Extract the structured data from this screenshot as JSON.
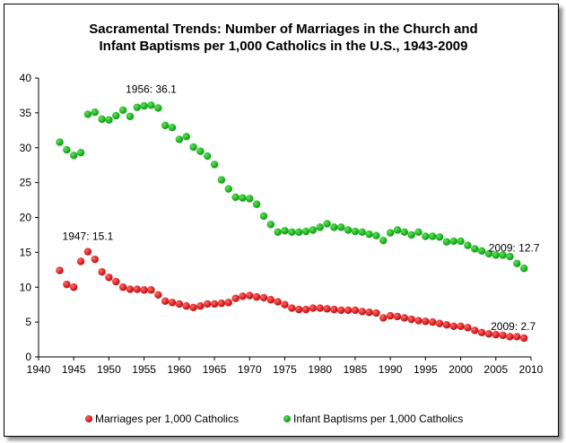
{
  "chart_data": {
    "type": "scatter",
    "title": "Sacramental Trends: Number of Marriages in the Church and",
    "subtitle": "Infant Baptisms per 1,000 Catholics in the U.S., 1943-2009",
    "xlim": [
      1940,
      2010
    ],
    "ylim": [
      0,
      40
    ],
    "x_ticks": [
      1940,
      1945,
      1950,
      1955,
      1960,
      1965,
      1970,
      1975,
      1980,
      1985,
      1990,
      1995,
      2000,
      2005,
      2010
    ],
    "y_ticks": [
      0,
      5,
      10,
      15,
      20,
      25,
      30,
      35,
      40
    ],
    "grid": false,
    "legend_position": "bottom",
    "series": [
      {
        "name": "Marriages per 1,000 Catholics",
        "color": "#c00000",
        "x": [
          1943,
          1944,
          1945,
          1946,
          1947,
          1948,
          1949,
          1950,
          1951,
          1952,
          1953,
          1954,
          1955,
          1956,
          1957,
          1958,
          1959,
          1960,
          1961,
          1962,
          1963,
          1964,
          1965,
          1966,
          1967,
          1968,
          1969,
          1970,
          1971,
          1972,
          1973,
          1974,
          1975,
          1976,
          1977,
          1978,
          1979,
          1980,
          1981,
          1982,
          1983,
          1984,
          1985,
          1986,
          1987,
          1988,
          1989,
          1990,
          1991,
          1992,
          1993,
          1994,
          1995,
          1996,
          1997,
          1998,
          1999,
          2000,
          2001,
          2002,
          2003,
          2004,
          2005,
          2006,
          2007,
          2008,
          2009
        ],
        "y": [
          12.4,
          10.4,
          10.0,
          13.7,
          15.1,
          14.0,
          12.2,
          11.4,
          10.8,
          10.0,
          9.7,
          9.7,
          9.6,
          9.6,
          8.9,
          8.0,
          7.8,
          7.6,
          7.3,
          7.1,
          7.3,
          7.6,
          7.6,
          7.7,
          7.8,
          8.4,
          8.7,
          8.8,
          8.6,
          8.5,
          8.2,
          7.9,
          7.5,
          7.0,
          6.8,
          6.8,
          7.0,
          7.0,
          6.9,
          6.8,
          6.7,
          6.7,
          6.7,
          6.5,
          6.4,
          6.3,
          5.6,
          5.9,
          5.8,
          5.6,
          5.4,
          5.2,
          5.1,
          5.0,
          4.8,
          4.6,
          4.4,
          4.4,
          4.2,
          3.8,
          3.5,
          3.3,
          3.2,
          3.1,
          2.9,
          2.9,
          2.7
        ]
      },
      {
        "name": "Infant Baptisms per 1,000 Catholics",
        "color": "#009900",
        "x": [
          1943,
          1944,
          1945,
          1946,
          1947,
          1948,
          1949,
          1950,
          1951,
          1952,
          1953,
          1954,
          1955,
          1956,
          1957,
          1958,
          1959,
          1960,
          1961,
          1962,
          1963,
          1964,
          1965,
          1966,
          1967,
          1968,
          1969,
          1970,
          1971,
          1972,
          1973,
          1974,
          1975,
          1976,
          1977,
          1978,
          1979,
          1980,
          1981,
          1982,
          1983,
          1984,
          1985,
          1986,
          1987,
          1988,
          1989,
          1990,
          1991,
          1992,
          1993,
          1994,
          1995,
          1996,
          1997,
          1998,
          1999,
          2000,
          2001,
          2002,
          2003,
          2004,
          2005,
          2006,
          2007,
          2008,
          2009
        ],
        "y": [
          30.8,
          29.7,
          28.9,
          29.3,
          34.8,
          35.1,
          34.1,
          34.0,
          34.6,
          35.4,
          34.5,
          35.8,
          36.0,
          36.1,
          35.7,
          33.2,
          32.9,
          31.2,
          31.6,
          30.1,
          29.5,
          28.8,
          27.6,
          25.4,
          24.1,
          22.9,
          22.8,
          22.7,
          21.9,
          20.2,
          19.0,
          17.9,
          18.1,
          17.9,
          17.9,
          18.0,
          18.2,
          18.6,
          19.1,
          18.6,
          18.6,
          18.2,
          18.0,
          17.9,
          17.6,
          17.4,
          16.7,
          17.8,
          18.2,
          17.9,
          17.5,
          17.9,
          17.3,
          17.3,
          17.2,
          16.5,
          16.6,
          16.6,
          16.0,
          15.5,
          15.2,
          14.8,
          14.6,
          14.6,
          14.4,
          13.4,
          12.7
        ]
      }
    ],
    "annotations": [
      {
        "text": "1956: 36.1",
        "series": 1,
        "x": 1956,
        "y": 36.1
      },
      {
        "text": "1947: 15.1",
        "series": 0,
        "x": 1947,
        "y": 15.1
      },
      {
        "text": "2009: 12.7",
        "series": 1,
        "x": 2009,
        "y": 12.7
      },
      {
        "text": "2009: 2.7",
        "series": 0,
        "x": 2009,
        "y": 2.7
      }
    ]
  }
}
